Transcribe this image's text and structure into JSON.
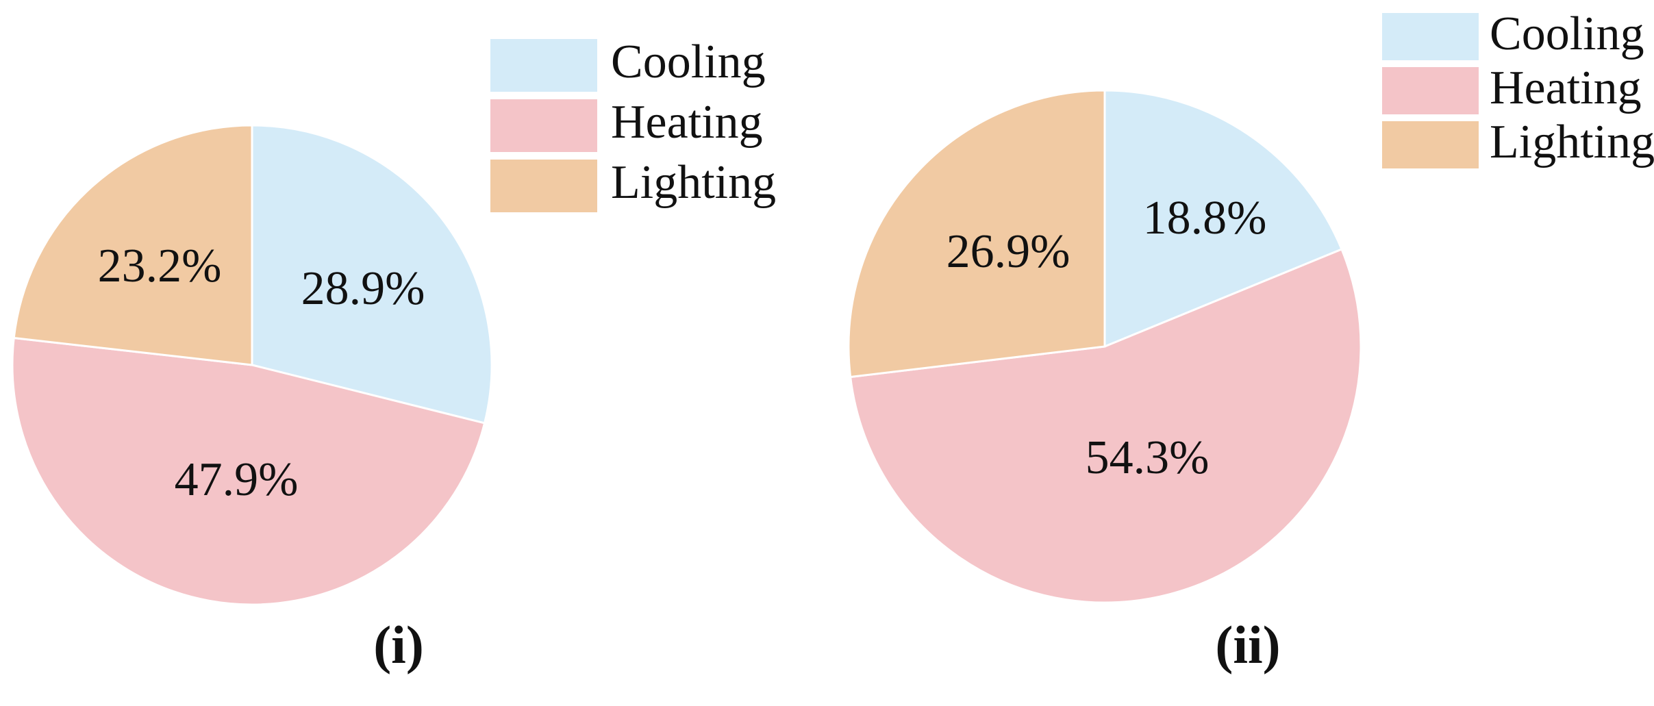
{
  "chart_data": [
    {
      "type": "pie",
      "panel_label": "(i)",
      "categories": [
        "Cooling",
        "Heating",
        "Lighting"
      ],
      "values": [
        28.9,
        47.9,
        23.2
      ],
      "value_labels": [
        "28.9%",
        "47.9%",
        "23.2%"
      ],
      "colors": [
        "#d4ebf8",
        "#f4c4c8",
        "#f1caa3"
      ],
      "start": "12 o'clock",
      "direction": "clockwise",
      "legend": {
        "placement": "top-right",
        "entries": [
          "Cooling",
          "Heating",
          "Lighting"
        ]
      }
    },
    {
      "type": "pie",
      "panel_label": "(ii)",
      "categories": [
        "Cooling",
        "Heating",
        "Lighting"
      ],
      "values": [
        18.8,
        54.3,
        26.9
      ],
      "value_labels": [
        "18.8%",
        "54.3%",
        "26.9%"
      ],
      "colors": [
        "#d4ebf8",
        "#f4c4c8",
        "#f1caa3"
      ],
      "start": "12 o'clock",
      "direction": "clockwise",
      "legend": {
        "placement": "top-right",
        "entries": [
          "Cooling",
          "Heating",
          "Lighting"
        ]
      }
    }
  ]
}
